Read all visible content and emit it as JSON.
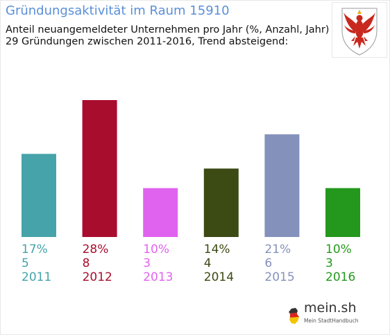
{
  "header": {
    "title": "Gründungsaktivität im Raum 15910",
    "subtitle_line1": "Anteil neuangemeldeter Unternehmen pro Jahr (%, Anzahl, Jahr)",
    "subtitle_line2": "29 Gründungen zwischen 2011-2016, Trend absteigend:"
  },
  "coat_of_arms": {
    "icon": "brandenburg-eagle-icon",
    "color": "#c8281e"
  },
  "logo": {
    "name": "mein.sh",
    "tagline": "Mein StadtHandbuch"
  },
  "chart_data": {
    "type": "bar",
    "categories": [
      "2011",
      "2012",
      "2013",
      "2014",
      "2015",
      "2016"
    ],
    "values": [
      17,
      28,
      10,
      14,
      21,
      10
    ],
    "percent_labels": [
      "17%",
      "28%",
      "10%",
      "14%",
      "21%",
      "10%"
    ],
    "counts": [
      5,
      8,
      3,
      4,
      6,
      3
    ],
    "colors": [
      "#45a3a9",
      "#a90d2e",
      "#e063ef",
      "#3c4a14",
      "#8491bb",
      "#24981c"
    ],
    "ylim": [
      0,
      28
    ],
    "grid": false,
    "legend": "none"
  }
}
